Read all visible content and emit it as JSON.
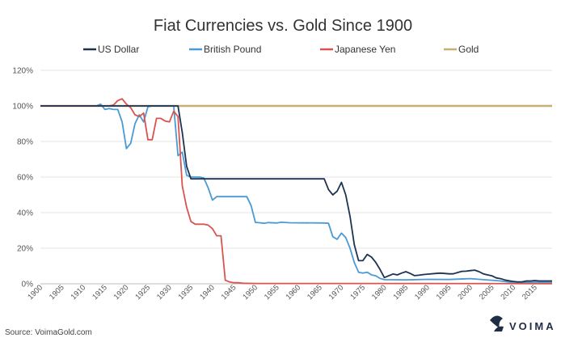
{
  "footer": {
    "source": "Source: VoimaGold.com",
    "brand": "VOIMA"
  },
  "chart_data": {
    "type": "line",
    "title": "Fiat Currencies vs. Gold Since 1900",
    "xlabel": "",
    "ylabel": "",
    "xlim": [
      1900,
      2019
    ],
    "ylim": [
      0,
      120
    ],
    "y_ticks": [
      0,
      20,
      40,
      60,
      80,
      100,
      120
    ],
    "y_tick_labels": [
      "0%",
      "20%",
      "40%",
      "60%",
      "80%",
      "100%",
      "120%"
    ],
    "x_ticks": [
      "1900",
      "1905",
      "1910",
      "1915",
      "1920",
      "1925",
      "1930",
      "1935",
      "1940",
      "1945",
      "1950",
      "1955",
      "1960",
      "1965",
      "1970",
      "1975",
      "1980",
      "1985",
      "1990",
      "1995",
      "2000",
      "2005",
      "2010",
      "2015"
    ],
    "grid": {
      "horizontal": true,
      "vertical": false
    },
    "legend_position": "top",
    "series": [
      {
        "name": "US Dollar",
        "color": "#1f3350",
        "points": [
          [
            1900,
            100
          ],
          [
            1932,
            100
          ],
          [
            1933,
            85
          ],
          [
            1934,
            66
          ],
          [
            1935,
            59
          ],
          [
            1966,
            59
          ],
          [
            1967,
            53
          ],
          [
            1968,
            50
          ],
          [
            1969,
            52
          ],
          [
            1970,
            57
          ],
          [
            1971,
            50
          ],
          [
            1972,
            38
          ],
          [
            1973,
            22
          ],
          [
            1974,
            13
          ],
          [
            1975,
            13
          ],
          [
            1976,
            16.5
          ],
          [
            1977,
            15
          ],
          [
            1978,
            12
          ],
          [
            1979,
            8
          ],
          [
            1980,
            3.5
          ],
          [
            1981,
            4.5
          ],
          [
            1982,
            5.5
          ],
          [
            1983,
            5
          ],
          [
            1984,
            6
          ],
          [
            1985,
            6.8
          ],
          [
            1986,
            5.8
          ],
          [
            1987,
            4.6
          ],
          [
            1988,
            4.8
          ],
          [
            1989,
            5.2
          ],
          [
            1990,
            5.4
          ],
          [
            1992,
            5.8
          ],
          [
            1993,
            6
          ],
          [
            1994,
            5.8
          ],
          [
            1995,
            5.6
          ],
          [
            1996,
            5.6
          ],
          [
            1997,
            6.3
          ],
          [
            1998,
            7
          ],
          [
            1999,
            7.1
          ],
          [
            2000,
            7.4
          ],
          [
            2001,
            7.7
          ],
          [
            2002,
            6.8
          ],
          [
            2003,
            5.6
          ],
          [
            2004,
            5
          ],
          [
            2005,
            4.5
          ],
          [
            2006,
            3.3
          ],
          [
            2007,
            2.9
          ],
          [
            2008,
            2.2
          ],
          [
            2009,
            1.7
          ],
          [
            2010,
            1.3
          ],
          [
            2011,
            1.1
          ],
          [
            2012,
            1.1
          ],
          [
            2013,
            1.6
          ],
          [
            2014,
            1.6
          ],
          [
            2015,
            1.8
          ],
          [
            2016,
            1.6
          ],
          [
            2017,
            1.6
          ],
          [
            2018,
            1.6
          ],
          [
            2019,
            1.6
          ]
        ]
      },
      {
        "name": "British Pound",
        "color": "#4a9ad4",
        "points": [
          [
            1900,
            100
          ],
          [
            1913,
            100
          ],
          [
            1914,
            101
          ],
          [
            1915,
            98
          ],
          [
            1916,
            98.5
          ],
          [
            1917,
            98
          ],
          [
            1918,
            98
          ],
          [
            1919,
            91
          ],
          [
            1920,
            76
          ],
          [
            1921,
            79
          ],
          [
            1922,
            90
          ],
          [
            1923,
            95
          ],
          [
            1924,
            91
          ],
          [
            1925,
            99.5
          ],
          [
            1926,
            100
          ],
          [
            1931,
            100
          ],
          [
            1932,
            72
          ],
          [
            1933,
            74
          ],
          [
            1934,
            61
          ],
          [
            1935,
            60
          ],
          [
            1936,
            60
          ],
          [
            1937,
            60
          ],
          [
            1938,
            59.5
          ],
          [
            1939,
            54
          ],
          [
            1940,
            47
          ],
          [
            1941,
            49
          ],
          [
            1946,
            49
          ],
          [
            1947,
            49
          ],
          [
            1948,
            49
          ],
          [
            1949,
            44
          ],
          [
            1950,
            34.5
          ],
          [
            1951,
            34.3
          ],
          [
            1952,
            34
          ],
          [
            1953,
            34.4
          ],
          [
            1955,
            34.2
          ],
          [
            1956,
            34.6
          ],
          [
            1958,
            34.3
          ],
          [
            1966,
            34.2
          ],
          [
            1967,
            34
          ],
          [
            1968,
            26.5
          ],
          [
            1969,
            25
          ],
          [
            1970,
            28.5
          ],
          [
            1971,
            26
          ],
          [
            1972,
            20
          ],
          [
            1973,
            12
          ],
          [
            1974,
            6.5
          ],
          [
            1975,
            6
          ],
          [
            1976,
            6.5
          ],
          [
            1977,
            5
          ],
          [
            1978,
            4.5
          ],
          [
            1979,
            3
          ],
          [
            1980,
            2.3
          ],
          [
            1985,
            2.2
          ],
          [
            1990,
            2.5
          ],
          [
            1995,
            2.4
          ],
          [
            1999,
            2.8
          ],
          [
            2000,
            2.9
          ],
          [
            2003,
            2.3
          ],
          [
            2005,
            2
          ],
          [
            2007,
            1.6
          ],
          [
            2009,
            1
          ],
          [
            2012,
            0.8
          ],
          [
            2015,
            0.9
          ],
          [
            2019,
            0.9
          ]
        ]
      },
      {
        "name": "Japanese Yen",
        "color": "#d9534f",
        "points": [
          [
            1900,
            100
          ],
          [
            1915,
            100
          ],
          [
            1916,
            100
          ],
          [
            1917,
            100.5
          ],
          [
            1918,
            103
          ],
          [
            1919,
            104
          ],
          [
            1920,
            101
          ],
          [
            1921,
            99
          ],
          [
            1922,
            95
          ],
          [
            1923,
            94
          ],
          [
            1924,
            96
          ],
          [
            1925,
            81
          ],
          [
            1926,
            81
          ],
          [
            1927,
            93
          ],
          [
            1928,
            93
          ],
          [
            1929,
            91.5
          ],
          [
            1930,
            91
          ],
          [
            1931,
            97
          ],
          [
            1932,
            94
          ],
          [
            1933,
            55
          ],
          [
            1934,
            43
          ],
          [
            1935,
            35
          ],
          [
            1936,
            33.5
          ],
          [
            1937,
            33.5
          ],
          [
            1938,
            33.5
          ],
          [
            1939,
            33
          ],
          [
            1940,
            31
          ],
          [
            1941,
            27
          ],
          [
            1942,
            27
          ],
          [
            1943,
            2
          ],
          [
            1944,
            1
          ],
          [
            1945,
            0.6
          ],
          [
            1946,
            0.6
          ],
          [
            1947,
            0.3
          ],
          [
            1950,
            0.2
          ],
          [
            1960,
            0.2
          ],
          [
            1980,
            0.2
          ],
          [
            2019,
            0.1
          ]
        ]
      },
      {
        "name": "Gold",
        "color": "#c9ac78",
        "points": [
          [
            1900,
            100
          ],
          [
            2019,
            100
          ]
        ]
      }
    ]
  }
}
